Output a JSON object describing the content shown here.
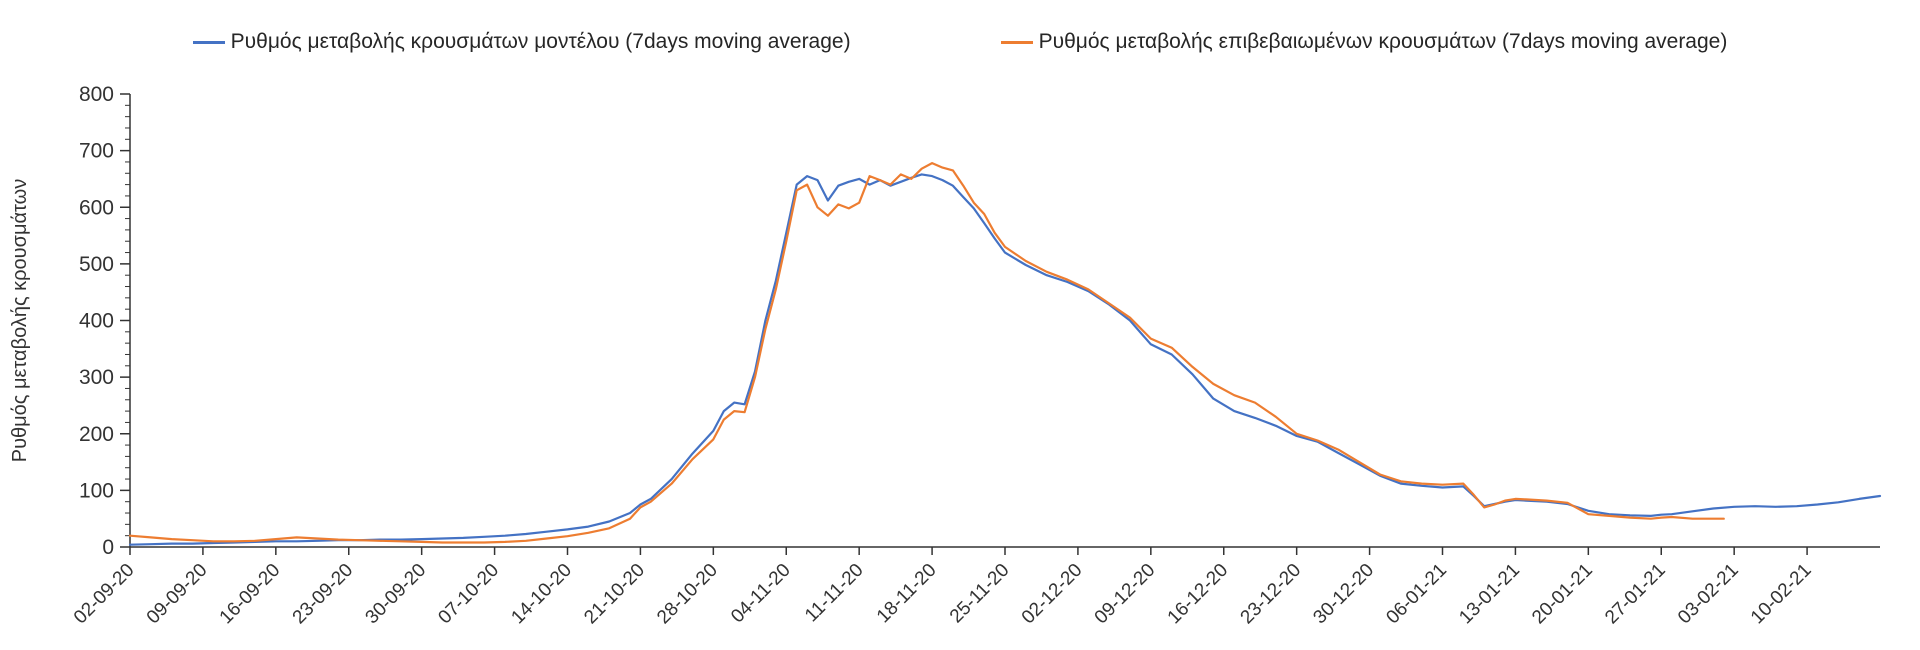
{
  "chart_data": {
    "type": "line",
    "title": "",
    "xlabel": "",
    "ylabel": "Ρυθμός μεταβολής κρουσμάτων",
    "ylim": [
      0,
      800
    ],
    "y_tick_step": 100,
    "y_minor_step": 20,
    "grid": false,
    "legend_position": "top",
    "x_domain": [
      0,
      168
    ],
    "x_tick_days": [
      0,
      7,
      14,
      21,
      28,
      35,
      42,
      49,
      56,
      63,
      70,
      77,
      84,
      91,
      98,
      105,
      112,
      119,
      126,
      133,
      140,
      147,
      154,
      161
    ],
    "x_tick_labels": [
      "02-09-20",
      "09-09-20",
      "16-09-20",
      "23-09-20",
      "30-09-20",
      "07-10-20",
      "14-10-20",
      "21-10-20",
      "28-10-20",
      "04-11-20",
      "11-11-20",
      "18-11-20",
      "25-11-20",
      "02-12-20",
      "09-12-20",
      "16-12-20",
      "23-12-20",
      "30-12-20",
      "06-01-21",
      "13-01-21",
      "20-01-21",
      "27-01-21",
      "03-02-21",
      "10-02-21"
    ],
    "series": [
      {
        "name": "Ρυθμός μεταβολής κρουσμάτων μοντέλου (7days moving average)",
        "color": "#4472c4",
        "points": [
          [
            0,
            4
          ],
          [
            2,
            5
          ],
          [
            4,
            6
          ],
          [
            6,
            6
          ],
          [
            8,
            7
          ],
          [
            10,
            8
          ],
          [
            12,
            9
          ],
          [
            14,
            10
          ],
          [
            16,
            10
          ],
          [
            18,
            11
          ],
          [
            20,
            12
          ],
          [
            22,
            12
          ],
          [
            24,
            13
          ],
          [
            26,
            13
          ],
          [
            28,
            14
          ],
          [
            30,
            15
          ],
          [
            32,
            16
          ],
          [
            34,
            18
          ],
          [
            36,
            20
          ],
          [
            38,
            23
          ],
          [
            40,
            27
          ],
          [
            42,
            31
          ],
          [
            44,
            36
          ],
          [
            46,
            45
          ],
          [
            48,
            60
          ],
          [
            49,
            75
          ],
          [
            50,
            85
          ],
          [
            52,
            120
          ],
          [
            54,
            165
          ],
          [
            56,
            205
          ],
          [
            57,
            240
          ],
          [
            58,
            255
          ],
          [
            59,
            252
          ],
          [
            60,
            310
          ],
          [
            61,
            400
          ],
          [
            62,
            470
          ],
          [
            63,
            555
          ],
          [
            64,
            640
          ],
          [
            65,
            655
          ],
          [
            66,
            648
          ],
          [
            67,
            612
          ],
          [
            68,
            638
          ],
          [
            69,
            645
          ],
          [
            70,
            650
          ],
          [
            71,
            640
          ],
          [
            72,
            648
          ],
          [
            73,
            638
          ],
          [
            74,
            645
          ],
          [
            75,
            652
          ],
          [
            76,
            658
          ],
          [
            77,
            655
          ],
          [
            78,
            648
          ],
          [
            79,
            638
          ],
          [
            80,
            618
          ],
          [
            81,
            598
          ],
          [
            82,
            572
          ],
          [
            83,
            545
          ],
          [
            84,
            520
          ],
          [
            86,
            498
          ],
          [
            88,
            480
          ],
          [
            90,
            468
          ],
          [
            92,
            452
          ],
          [
            94,
            428
          ],
          [
            96,
            400
          ],
          [
            98,
            358
          ],
          [
            100,
            340
          ],
          [
            102,
            305
          ],
          [
            104,
            262
          ],
          [
            106,
            240
          ],
          [
            108,
            228
          ],
          [
            110,
            214
          ],
          [
            112,
            196
          ],
          [
            114,
            186
          ],
          [
            116,
            166
          ],
          [
            118,
            146
          ],
          [
            120,
            126
          ],
          [
            122,
            112
          ],
          [
            124,
            108
          ],
          [
            126,
            105
          ],
          [
            128,
            107
          ],
          [
            129,
            90
          ],
          [
            130,
            72
          ],
          [
            131,
            76
          ],
          [
            132,
            80
          ],
          [
            133,
            83
          ],
          [
            134,
            82
          ],
          [
            136,
            80
          ],
          [
            138,
            76
          ],
          [
            140,
            64
          ],
          [
            142,
            58
          ],
          [
            144,
            56
          ],
          [
            146,
            55
          ],
          [
            147,
            57
          ],
          [
            148,
            58
          ],
          [
            150,
            63
          ],
          [
            152,
            68
          ],
          [
            154,
            71
          ],
          [
            156,
            72
          ],
          [
            158,
            71
          ],
          [
            160,
            72
          ],
          [
            162,
            75
          ],
          [
            164,
            79
          ],
          [
            166,
            85
          ],
          [
            168,
            90
          ]
        ]
      },
      {
        "name": "Ρυθμός μεταβολής επιβεβαιωμένων κρουσμάτων (7days moving average)",
        "color": "#ed7d31",
        "points": [
          [
            0,
            20
          ],
          [
            2,
            17
          ],
          [
            4,
            14
          ],
          [
            6,
            12
          ],
          [
            8,
            10
          ],
          [
            10,
            10
          ],
          [
            12,
            11
          ],
          [
            14,
            14
          ],
          [
            16,
            17
          ],
          [
            18,
            15
          ],
          [
            20,
            13
          ],
          [
            22,
            12
          ],
          [
            24,
            11
          ],
          [
            26,
            10
          ],
          [
            28,
            9
          ],
          [
            30,
            8
          ],
          [
            32,
            8
          ],
          [
            34,
            8
          ],
          [
            36,
            9
          ],
          [
            38,
            11
          ],
          [
            40,
            15
          ],
          [
            42,
            19
          ],
          [
            44,
            25
          ],
          [
            46,
            33
          ],
          [
            48,
            50
          ],
          [
            49,
            70
          ],
          [
            50,
            80
          ],
          [
            52,
            112
          ],
          [
            54,
            155
          ],
          [
            56,
            190
          ],
          [
            57,
            225
          ],
          [
            58,
            240
          ],
          [
            59,
            238
          ],
          [
            60,
            300
          ],
          [
            61,
            385
          ],
          [
            62,
            455
          ],
          [
            63,
            540
          ],
          [
            64,
            630
          ],
          [
            65,
            640
          ],
          [
            66,
            600
          ],
          [
            67,
            585
          ],
          [
            68,
            605
          ],
          [
            69,
            598
          ],
          [
            70,
            608
          ],
          [
            71,
            655
          ],
          [
            72,
            648
          ],
          [
            73,
            640
          ],
          [
            74,
            658
          ],
          [
            75,
            650
          ],
          [
            76,
            668
          ],
          [
            77,
            678
          ],
          [
            78,
            670
          ],
          [
            79,
            665
          ],
          [
            80,
            638
          ],
          [
            81,
            608
          ],
          [
            82,
            588
          ],
          [
            83,
            555
          ],
          [
            84,
            530
          ],
          [
            86,
            505
          ],
          [
            88,
            486
          ],
          [
            90,
            472
          ],
          [
            92,
            455
          ],
          [
            94,
            430
          ],
          [
            96,
            405
          ],
          [
            98,
            368
          ],
          [
            100,
            352
          ],
          [
            102,
            318
          ],
          [
            104,
            288
          ],
          [
            106,
            268
          ],
          [
            108,
            255
          ],
          [
            110,
            230
          ],
          [
            112,
            200
          ],
          [
            114,
            188
          ],
          [
            116,
            172
          ],
          [
            118,
            150
          ],
          [
            120,
            128
          ],
          [
            122,
            116
          ],
          [
            124,
            112
          ],
          [
            126,
            110
          ],
          [
            128,
            112
          ],
          [
            129,
            92
          ],
          [
            130,
            70
          ],
          [
            131,
            75
          ],
          [
            132,
            82
          ],
          [
            133,
            85
          ],
          [
            134,
            84
          ],
          [
            136,
            82
          ],
          [
            138,
            78
          ],
          [
            140,
            58
          ],
          [
            142,
            55
          ],
          [
            144,
            52
          ],
          [
            146,
            50
          ],
          [
            147,
            52
          ],
          [
            148,
            53
          ],
          [
            150,
            50
          ],
          [
            152,
            50
          ],
          [
            153,
            50
          ]
        ]
      }
    ]
  }
}
